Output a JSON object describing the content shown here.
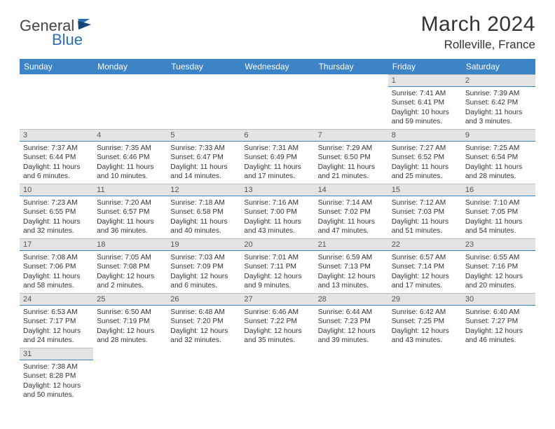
{
  "logo": {
    "part1": "General",
    "part2": "Blue"
  },
  "title": "March 2024",
  "location": "Rolleville, France",
  "colors": {
    "header_bg": "#3c84c6",
    "header_text": "#ffffff",
    "daynum_bg": "#e4e4e4",
    "daynum_border_top": "#bfbfbf",
    "daynum_border_bottom": "#3c84c6",
    "logo_accent": "#2a6fb5"
  },
  "weekdays": [
    "Sunday",
    "Monday",
    "Tuesday",
    "Wednesday",
    "Thursday",
    "Friday",
    "Saturday"
  ],
  "weeks": [
    [
      null,
      null,
      null,
      null,
      null,
      {
        "n": "1",
        "sr": "Sunrise: 7:41 AM",
        "ss": "Sunset: 6:41 PM",
        "dl": "Daylight: 10 hours and 59 minutes."
      },
      {
        "n": "2",
        "sr": "Sunrise: 7:39 AM",
        "ss": "Sunset: 6:42 PM",
        "dl": "Daylight: 11 hours and 3 minutes."
      }
    ],
    [
      {
        "n": "3",
        "sr": "Sunrise: 7:37 AM",
        "ss": "Sunset: 6:44 PM",
        "dl": "Daylight: 11 hours and 6 minutes."
      },
      {
        "n": "4",
        "sr": "Sunrise: 7:35 AM",
        "ss": "Sunset: 6:46 PM",
        "dl": "Daylight: 11 hours and 10 minutes."
      },
      {
        "n": "5",
        "sr": "Sunrise: 7:33 AM",
        "ss": "Sunset: 6:47 PM",
        "dl": "Daylight: 11 hours and 14 minutes."
      },
      {
        "n": "6",
        "sr": "Sunrise: 7:31 AM",
        "ss": "Sunset: 6:49 PM",
        "dl": "Daylight: 11 hours and 17 minutes."
      },
      {
        "n": "7",
        "sr": "Sunrise: 7:29 AM",
        "ss": "Sunset: 6:50 PM",
        "dl": "Daylight: 11 hours and 21 minutes."
      },
      {
        "n": "8",
        "sr": "Sunrise: 7:27 AM",
        "ss": "Sunset: 6:52 PM",
        "dl": "Daylight: 11 hours and 25 minutes."
      },
      {
        "n": "9",
        "sr": "Sunrise: 7:25 AM",
        "ss": "Sunset: 6:54 PM",
        "dl": "Daylight: 11 hours and 28 minutes."
      }
    ],
    [
      {
        "n": "10",
        "sr": "Sunrise: 7:23 AM",
        "ss": "Sunset: 6:55 PM",
        "dl": "Daylight: 11 hours and 32 minutes."
      },
      {
        "n": "11",
        "sr": "Sunrise: 7:20 AM",
        "ss": "Sunset: 6:57 PM",
        "dl": "Daylight: 11 hours and 36 minutes."
      },
      {
        "n": "12",
        "sr": "Sunrise: 7:18 AM",
        "ss": "Sunset: 6:58 PM",
        "dl": "Daylight: 11 hours and 40 minutes."
      },
      {
        "n": "13",
        "sr": "Sunrise: 7:16 AM",
        "ss": "Sunset: 7:00 PM",
        "dl": "Daylight: 11 hours and 43 minutes."
      },
      {
        "n": "14",
        "sr": "Sunrise: 7:14 AM",
        "ss": "Sunset: 7:02 PM",
        "dl": "Daylight: 11 hours and 47 minutes."
      },
      {
        "n": "15",
        "sr": "Sunrise: 7:12 AM",
        "ss": "Sunset: 7:03 PM",
        "dl": "Daylight: 11 hours and 51 minutes."
      },
      {
        "n": "16",
        "sr": "Sunrise: 7:10 AM",
        "ss": "Sunset: 7:05 PM",
        "dl": "Daylight: 11 hours and 54 minutes."
      }
    ],
    [
      {
        "n": "17",
        "sr": "Sunrise: 7:08 AM",
        "ss": "Sunset: 7:06 PM",
        "dl": "Daylight: 11 hours and 58 minutes."
      },
      {
        "n": "18",
        "sr": "Sunrise: 7:05 AM",
        "ss": "Sunset: 7:08 PM",
        "dl": "Daylight: 12 hours and 2 minutes."
      },
      {
        "n": "19",
        "sr": "Sunrise: 7:03 AM",
        "ss": "Sunset: 7:09 PM",
        "dl": "Daylight: 12 hours and 6 minutes."
      },
      {
        "n": "20",
        "sr": "Sunrise: 7:01 AM",
        "ss": "Sunset: 7:11 PM",
        "dl": "Daylight: 12 hours and 9 minutes."
      },
      {
        "n": "21",
        "sr": "Sunrise: 6:59 AM",
        "ss": "Sunset: 7:13 PM",
        "dl": "Daylight: 12 hours and 13 minutes."
      },
      {
        "n": "22",
        "sr": "Sunrise: 6:57 AM",
        "ss": "Sunset: 7:14 PM",
        "dl": "Daylight: 12 hours and 17 minutes."
      },
      {
        "n": "23",
        "sr": "Sunrise: 6:55 AM",
        "ss": "Sunset: 7:16 PM",
        "dl": "Daylight: 12 hours and 20 minutes."
      }
    ],
    [
      {
        "n": "24",
        "sr": "Sunrise: 6:53 AM",
        "ss": "Sunset: 7:17 PM",
        "dl": "Daylight: 12 hours and 24 minutes."
      },
      {
        "n": "25",
        "sr": "Sunrise: 6:50 AM",
        "ss": "Sunset: 7:19 PM",
        "dl": "Daylight: 12 hours and 28 minutes."
      },
      {
        "n": "26",
        "sr": "Sunrise: 6:48 AM",
        "ss": "Sunset: 7:20 PM",
        "dl": "Daylight: 12 hours and 32 minutes."
      },
      {
        "n": "27",
        "sr": "Sunrise: 6:46 AM",
        "ss": "Sunset: 7:22 PM",
        "dl": "Daylight: 12 hours and 35 minutes."
      },
      {
        "n": "28",
        "sr": "Sunrise: 6:44 AM",
        "ss": "Sunset: 7:23 PM",
        "dl": "Daylight: 12 hours and 39 minutes."
      },
      {
        "n": "29",
        "sr": "Sunrise: 6:42 AM",
        "ss": "Sunset: 7:25 PM",
        "dl": "Daylight: 12 hours and 43 minutes."
      },
      {
        "n": "30",
        "sr": "Sunrise: 6:40 AM",
        "ss": "Sunset: 7:27 PM",
        "dl": "Daylight: 12 hours and 46 minutes."
      }
    ],
    [
      {
        "n": "31",
        "sr": "Sunrise: 7:38 AM",
        "ss": "Sunset: 8:28 PM",
        "dl": "Daylight: 12 hours and 50 minutes."
      },
      null,
      null,
      null,
      null,
      null,
      null
    ]
  ]
}
